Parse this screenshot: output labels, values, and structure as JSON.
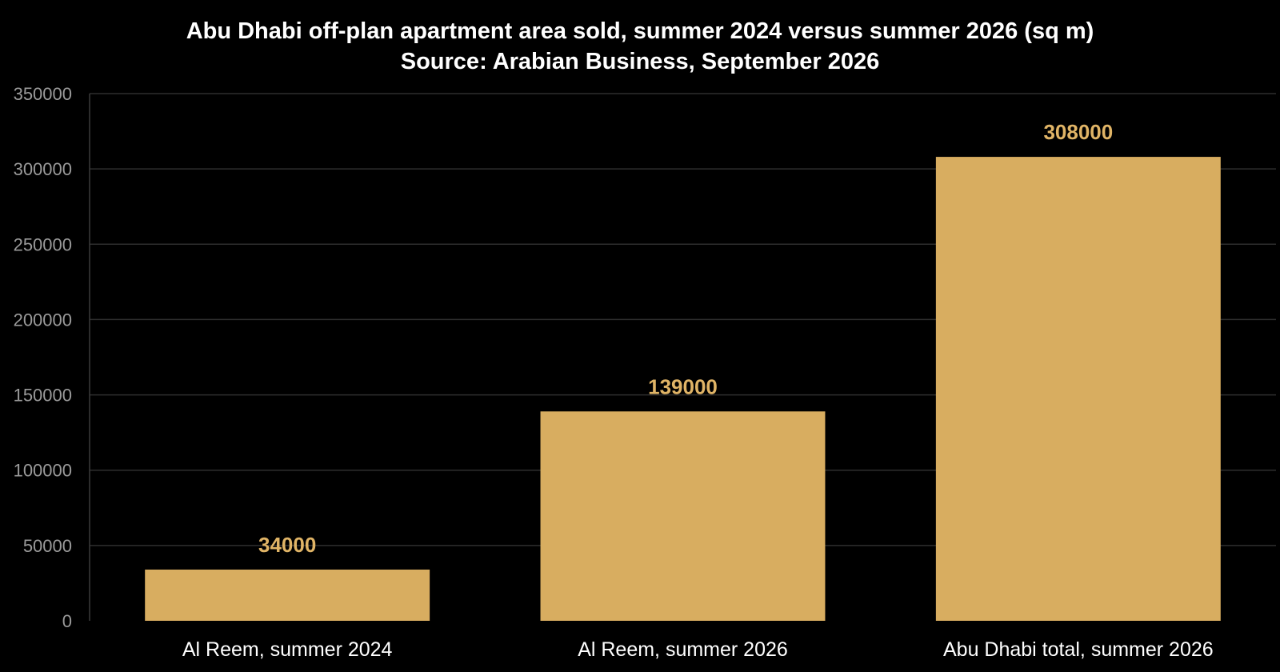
{
  "chart_data": {
    "type": "bar",
    "title": "Abu Dhabi off-plan apartment area sold, summer 2024 versus summer 2026 (sq m)",
    "subtitle": "Source: Arabian Business, September 2026",
    "categories": [
      "Al Reem, summer 2024",
      "Al Reem, summer 2026",
      "Abu Dhabi total, summer 2026"
    ],
    "values": [
      34000,
      139000,
      308000
    ],
    "data_labels": [
      "34000",
      "139000",
      "308000"
    ],
    "ylim": [
      0,
      350000
    ],
    "yticks": [
      0,
      50000,
      100000,
      150000,
      200000,
      250000,
      300000,
      350000
    ],
    "ytick_labels": [
      "0",
      "50000",
      "100000",
      "150000",
      "200000",
      "250000",
      "300000",
      "350000"
    ],
    "xlabel": "",
    "ylabel": "",
    "grid": true,
    "legend": "none",
    "colors": {
      "background": "#000000",
      "bar": "#d8ad60",
      "data_label": "#e0b466",
      "title": "#ffffff",
      "tick_label": "#9a9a9a",
      "category_label": "#ffffff",
      "grid": "#2e2e2e"
    }
  }
}
